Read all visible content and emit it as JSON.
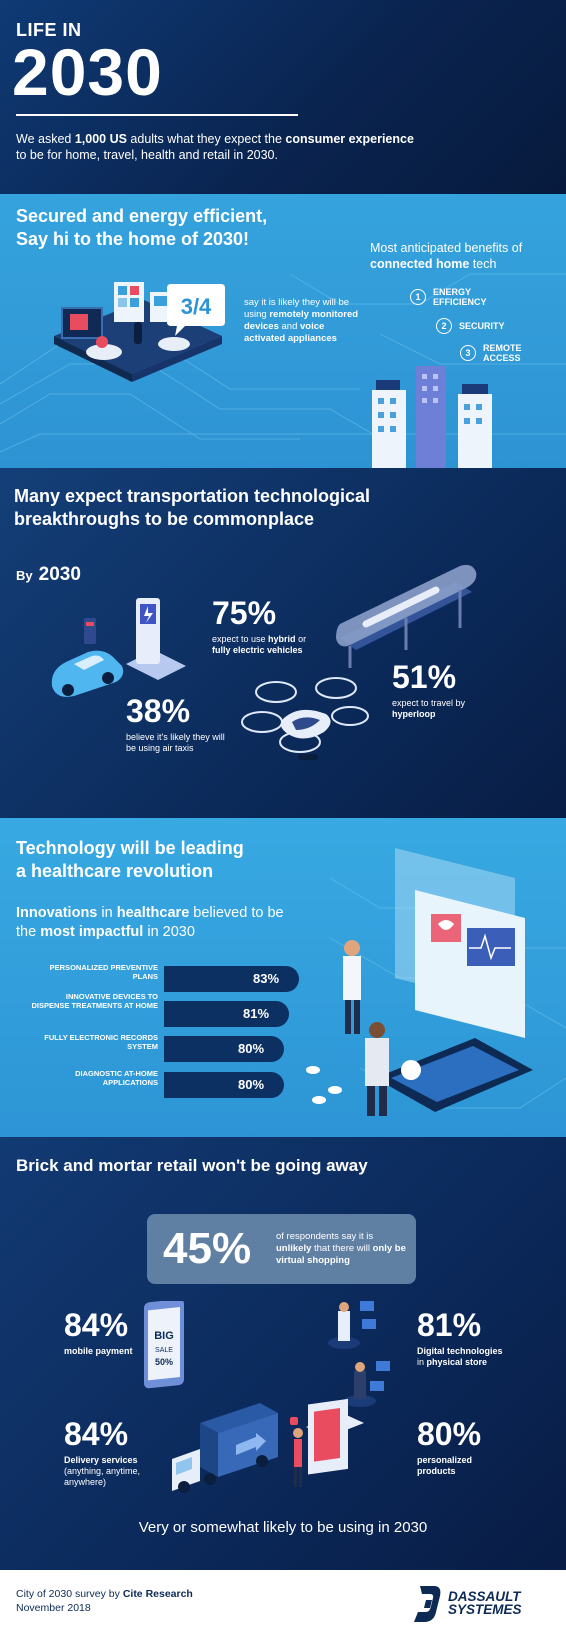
{
  "header": {
    "kicker": "LIFE IN",
    "year": "2030",
    "intro_pre": "We asked ",
    "intro_count": "1,000 US",
    "intro_mid": " adults what they expect the ",
    "intro_b1": "consumer experience",
    "intro_post": " to be for home, travel, health and retail in 2030."
  },
  "home": {
    "title_line1": "Secured and energy efficient,",
    "title_line2": "Say hi to the home of 2030!",
    "fraction": "3/4",
    "note_pre": "say it is likely they will be using ",
    "note_b1": "remotely monitored devices",
    "note_mid": " and ",
    "note_b2": "voice activated appliances",
    "benefits_title_pre": "Most anticipated benefits of ",
    "benefits_title_bold": "connected home",
    "benefits_title_post": " tech",
    "benefits": [
      {
        "num": "1",
        "label_l1": "ENERGY",
        "label_l2": "EFFICIENCY"
      },
      {
        "num": "2",
        "label_l1": "SECURITY",
        "label_l2": ""
      },
      {
        "num": "3",
        "label_l1": "REMOTE",
        "label_l2": "ACCESS"
      }
    ]
  },
  "transport": {
    "title_line1": "Many expect transportation technological",
    "title_line2": "breakthroughs to be commonplace",
    "by_label": "By",
    "by_year": "2030",
    "stat1": {
      "pct": "75%",
      "pre": "expect to use ",
      "b1": "hybrid",
      "mid": " or ",
      "b2": "fully electric vehicles"
    },
    "stat2": {
      "pct": "51%",
      "pre": "expect to travel by ",
      "b1": "hyperloop"
    },
    "stat3": {
      "pct": "38%",
      "text": "believe it's likely they will be using air taxis"
    }
  },
  "health": {
    "title_line1": "Technology will be leading",
    "title_line2": "a healthcare revolution",
    "sub_b1": "Innovations",
    "sub_t1": " in ",
    "sub_b2": "healthcare",
    "sub_t2": " believed to be the ",
    "sub_b3": "most impactful",
    "sub_t3": " in 2030",
    "rows": [
      {
        "label": "PERSONALIZED PREVENTIVE PLANS",
        "value": "83%",
        "pct": 83
      },
      {
        "label": "INNOVATIVE DEVICES TO DISPENSE TREATMENTS AT HOME",
        "value": "81%",
        "pct": 81
      },
      {
        "label": "FULLY ELECTRONIC RECORDS SYSTEM",
        "value": "80%",
        "pct": 80
      },
      {
        "label": "DIAGNOSTIC AT-HOME APPLICATIONS",
        "value": "80%",
        "pct": 80
      }
    ]
  },
  "retail": {
    "title": "Brick and mortar retail won't be going away",
    "headline_pct": "45%",
    "headline_pre": "of respondents say it is ",
    "headline_b1": "unlikely",
    "headline_mid": " that there will ",
    "headline_b2": "only be virtual shopping",
    "stats": [
      {
        "pct": "84%",
        "label": "mobile payment"
      },
      {
        "pct": "81%",
        "label": "Digital technologies",
        "label_pre": "in ",
        "label_b": "physical store"
      },
      {
        "pct": "84%",
        "label_b": "Delivery services",
        "label_rest": "(anything, anytime, anywhere)"
      },
      {
        "pct": "80%",
        "label": "personalized products"
      }
    ],
    "sign_big": "BIG",
    "sign_sale": "SALE",
    "sign_pct": "50%",
    "footer": "Very or somewhat likely to be using in 2030"
  },
  "footer": {
    "source_pre": "City of 2030 survey by ",
    "source_bold": "Cite Research",
    "date": "November 2018",
    "logo_line1": "DASSAULT",
    "logo_line2": "SYSTEMES"
  },
  "colors": {
    "navy": "#0d2a55",
    "sky": "#35a3dd",
    "bar": "#0d3063",
    "card": "#5f7fa3"
  }
}
